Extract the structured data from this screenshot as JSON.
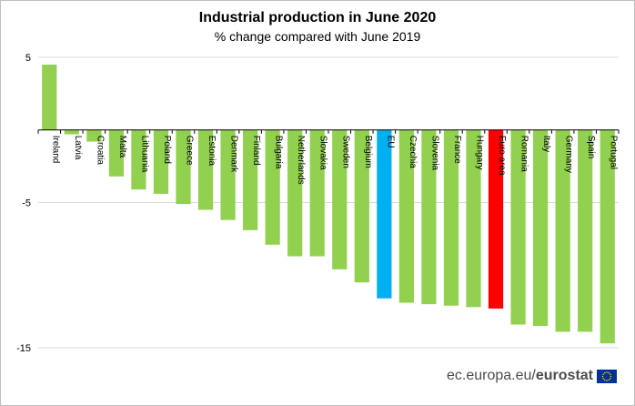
{
  "chart_data": {
    "type": "bar",
    "title": "Industrial production in June 2020",
    "subtitle": "% change compared with June 2019",
    "xlabel": "",
    "ylabel": "",
    "ylim": [
      -15,
      5
    ],
    "yticks": [
      5,
      -5,
      -15
    ],
    "grid": true,
    "categories": [
      "Ireland",
      "Latvia",
      "Croatia",
      "Malta",
      "Lithuania",
      "Poland",
      "Greece",
      "Estonia",
      "Denmark",
      "Finland",
      "Bulgaria",
      "Netherlands",
      "Slovakia",
      "Sweden",
      "Belgium",
      "EU",
      "Czechia",
      "Slovenia",
      "France",
      "Hungary",
      "Euro area",
      "Romania",
      "Italy",
      "Germany",
      "Spain",
      "Portugal"
    ],
    "values": [
      4.5,
      -0.3,
      -0.8,
      -3.2,
      -4.1,
      -4.4,
      -5.1,
      -5.5,
      -6.2,
      -6.9,
      -7.9,
      -8.7,
      -8.7,
      -9.6,
      -10.5,
      -11.6,
      -11.9,
      -12.0,
      -12.1,
      -12.2,
      -12.3,
      -13.4,
      -13.5,
      -13.9,
      -13.9,
      -14.7
    ],
    "colors": {
      "default": "#92d050",
      "EU": "#00b0f0",
      "Euro area": "#ff0000"
    }
  },
  "footer": {
    "site_regular": "ec.europa.eu/",
    "site_bold": "eurostat"
  },
  "colors": {
    "gridline": "#d9d9d9",
    "axis": "#000000"
  }
}
